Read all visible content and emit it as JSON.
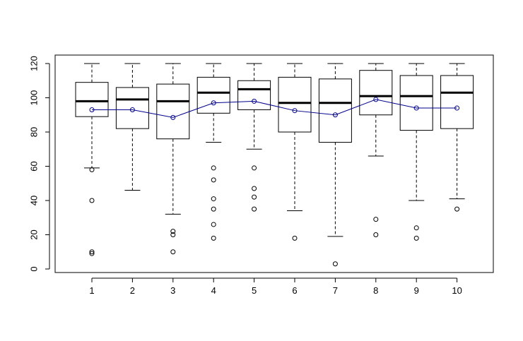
{
  "chart_data": {
    "type": "boxplot",
    "title": "",
    "xlabel": "",
    "ylabel": "",
    "categories": [
      "1",
      "2",
      "3",
      "4",
      "5",
      "6",
      "7",
      "8",
      "9",
      "10"
    ],
    "ylim": [
      0,
      120
    ],
    "yticks": [
      0,
      20,
      40,
      60,
      80,
      100,
      120
    ],
    "grid": false,
    "boxes": [
      {
        "category": "1",
        "whisker_low": 59,
        "q1": 89,
        "median": 98,
        "q3": 109,
        "whisker_high": 120,
        "outliers": [
          58,
          40,
          10,
          9
        ]
      },
      {
        "category": "2",
        "whisker_low": 46,
        "q1": 82,
        "median": 99,
        "q3": 106,
        "whisker_high": 120,
        "outliers": []
      },
      {
        "category": "3",
        "whisker_low": 32,
        "q1": 76,
        "median": 98,
        "q3": 108,
        "whisker_high": 120,
        "outliers": [
          22,
          20,
          10
        ]
      },
      {
        "category": "4",
        "whisker_low": 74,
        "q1": 91,
        "median": 103,
        "q3": 112,
        "whisker_high": 120,
        "outliers": [
          59,
          52,
          41,
          35,
          26,
          18
        ]
      },
      {
        "category": "5",
        "whisker_low": 70,
        "q1": 93,
        "median": 105,
        "q3": 110,
        "whisker_high": 120,
        "outliers": [
          59,
          47,
          42,
          35
        ]
      },
      {
        "category": "6",
        "whisker_low": 34,
        "q1": 80,
        "median": 97,
        "q3": 112,
        "whisker_high": 120,
        "outliers": [
          18
        ]
      },
      {
        "category": "7",
        "whisker_low": 19,
        "q1": 74,
        "median": 97,
        "q3": 111,
        "whisker_high": 120,
        "outliers": [
          3
        ]
      },
      {
        "category": "8",
        "whisker_low": 66,
        "q1": 90,
        "median": 101,
        "q3": 116,
        "whisker_high": 120,
        "outliers": [
          29,
          20
        ]
      },
      {
        "category": "9",
        "whisker_low": 40,
        "q1": 81,
        "median": 101,
        "q3": 113,
        "whisker_high": 120,
        "outliers": [
          24,
          18
        ]
      },
      {
        "category": "10",
        "whisker_low": 41,
        "q1": 82,
        "median": 103,
        "q3": 113,
        "whisker_high": 120,
        "outliers": [
          35
        ]
      }
    ],
    "series": [
      {
        "type": "line",
        "values": [
          93,
          93,
          88.5,
          97,
          98,
          92.5,
          90,
          99,
          94,
          94
        ]
      }
    ],
    "colors": {
      "box": "#000000",
      "mean_line": "#00008b"
    }
  }
}
